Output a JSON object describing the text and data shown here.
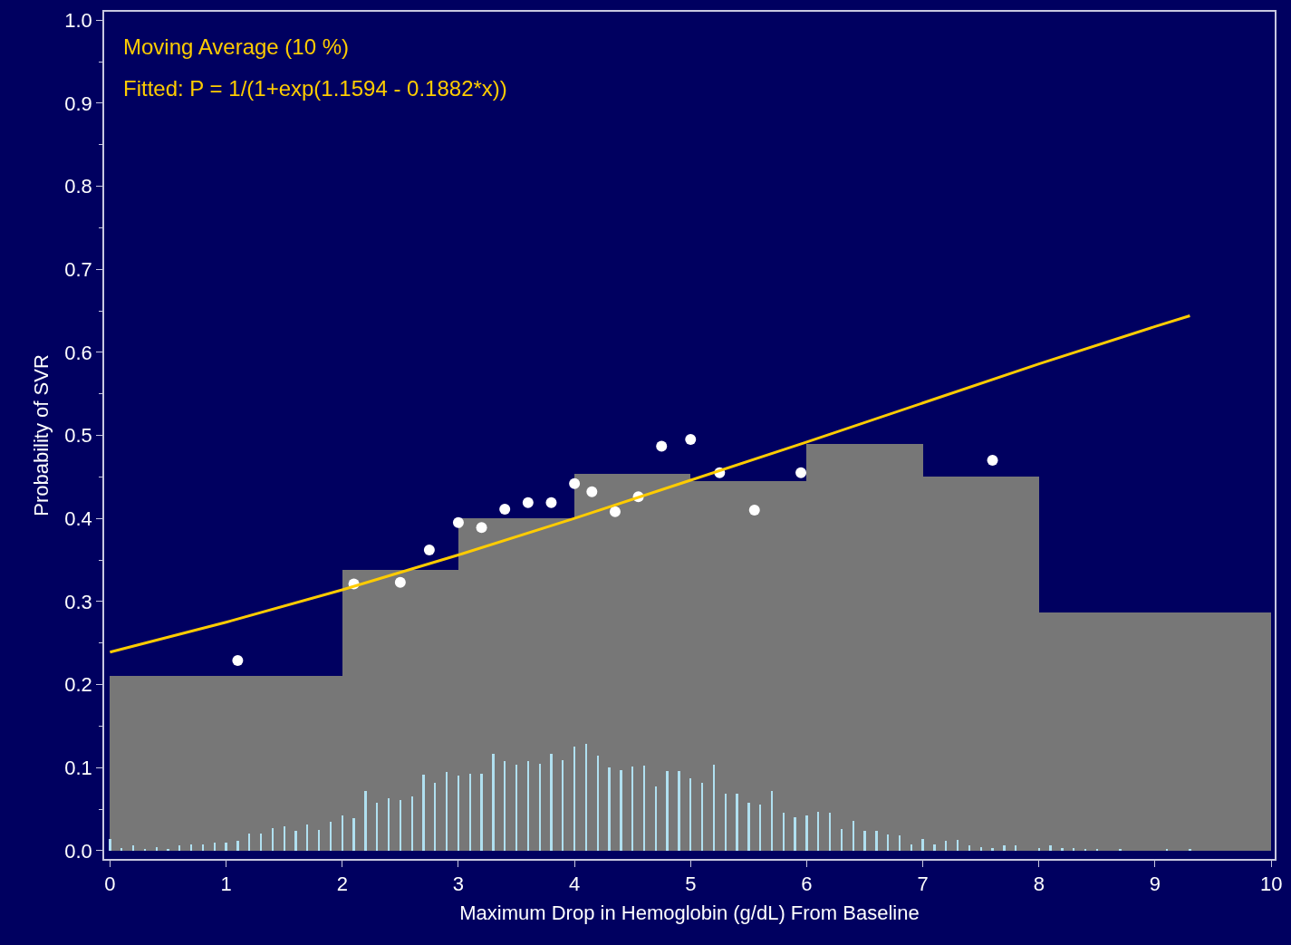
{
  "chart_data": {
    "type": "histogram",
    "xlabel": "Maximum Drop in Hemoglobin (g/dL) From Baseline",
    "ylabel": "Probability of SVR",
    "bins": [
      0,
      2,
      3,
      4,
      5,
      6,
      7,
      8,
      10
    ],
    "values": [
      0.21,
      0.338,
      0.4,
      0.454,
      0.445,
      0.49,
      0.45,
      0.287
    ],
    "color": "#777777",
    "series": [
      {
        "type": "bar",
        "color": "#b0e0f0",
        "x": [
          0,
          0.1,
          0.2,
          0.3,
          0.4,
          0.5,
          0.6,
          0.7,
          0.8,
          0.9,
          1.0,
          1.1,
          1.2,
          1.3,
          1.4,
          1.5,
          1.6,
          1.7,
          1.8,
          1.9,
          2.0,
          2.1,
          2.2,
          2.3,
          2.4,
          2.5,
          2.6,
          2.7,
          2.8,
          2.9,
          3.0,
          3.1,
          3.2,
          3.3,
          3.4,
          3.5,
          3.6,
          3.7,
          3.8,
          3.9,
          4.0,
          4.1,
          4.2,
          4.3,
          4.4,
          4.5,
          4.6,
          4.7,
          4.8,
          4.9,
          5.0,
          5.1,
          5.2,
          5.3,
          5.4,
          5.5,
          5.6,
          5.7,
          5.8,
          5.9,
          6.0,
          6.1,
          6.2,
          6.3,
          6.4,
          6.5,
          6.6,
          6.7,
          6.8,
          6.9,
          7.0,
          7.1,
          7.2,
          7.3,
          7.4,
          7.5,
          7.6,
          7.7,
          7.8,
          8.0,
          8.1,
          8.2,
          8.3,
          8.4,
          8.5,
          8.7,
          9.1,
          9.3
        ],
        "values": [
          0.014,
          0.003,
          0.006,
          0.002,
          0.004,
          0.002,
          0.006,
          0.007,
          0.007,
          0.01,
          0.01,
          0.012,
          0.021,
          0.021,
          0.027,
          0.029,
          0.024,
          0.031,
          0.025,
          0.035,
          0.042,
          0.039,
          0.072,
          0.058,
          0.063,
          0.061,
          0.065,
          0.092,
          0.082,
          0.095,
          0.09,
          0.093,
          0.093,
          0.117,
          0.108,
          0.104,
          0.108,
          0.105,
          0.117,
          0.109,
          0.125,
          0.129,
          0.114,
          0.1,
          0.097,
          0.101,
          0.102,
          0.077,
          0.096,
          0.096,
          0.087,
          0.082,
          0.104,
          0.069,
          0.069,
          0.058,
          0.056,
          0.072,
          0.046,
          0.04,
          0.042,
          0.047,
          0.046,
          0.026,
          0.036,
          0.024,
          0.024,
          0.019,
          0.018,
          0.007,
          0.014,
          0.008,
          0.012,
          0.013,
          0.006,
          0.004,
          0.003,
          0.006,
          0.006,
          0.003,
          0.006,
          0.003,
          0.003,
          0.002,
          0.002,
          0.002,
          0.002,
          0.002
        ]
      },
      {
        "type": "scatter",
        "color": "#ffffff",
        "marker": "circle",
        "x": [
          1.1,
          2.1,
          2.5,
          2.75,
          3.0,
          3.2,
          3.4,
          3.6,
          3.8,
          4.0,
          4.15,
          4.35,
          4.55,
          4.75,
          5.0,
          5.25,
          5.55,
          5.95,
          7.6
        ],
        "values": [
          0.229,
          0.321,
          0.323,
          0.362,
          0.395,
          0.389,
          0.411,
          0.419,
          0.419,
          0.442,
          0.432,
          0.408,
          0.426,
          0.487,
          0.495,
          0.455,
          0.41,
          0.455,
          0.47
        ]
      },
      {
        "type": "line",
        "color": "#ffcc00",
        "line_style": "solid",
        "x": [
          0,
          1,
          2,
          3,
          4,
          5,
          6,
          7,
          8,
          9,
          9.3
        ],
        "values": [
          0.239,
          0.275,
          0.314,
          0.356,
          0.4,
          0.446,
          0.492,
          0.539,
          0.586,
          0.631,
          0.644
        ]
      }
    ],
    "annotations": [
      "Moving Average (10 %)",
      "Fitted: P = 1/(1+exp(1.1594 - 0.1882*x))"
    ],
    "xlim": [
      -0.05,
      10.03
    ],
    "xticks": [
      0,
      1,
      2,
      3,
      4,
      5,
      6,
      7,
      8,
      9,
      10
    ],
    "ylim": [
      -0.01,
      1.01
    ],
    "yticks": [
      {
        "value": 0,
        "label": "0.0"
      },
      {
        "value": 0.1,
        "label": "0.1"
      },
      {
        "value": 0.2,
        "label": "0.2"
      },
      {
        "value": 0.3,
        "label": "0.3"
      },
      {
        "value": 0.4,
        "label": "0.4"
      },
      {
        "value": 0.5,
        "label": "0.5"
      },
      {
        "value": 0.6,
        "label": "0.6"
      },
      {
        "value": 0.7,
        "label": "0.7"
      },
      {
        "value": 0.8,
        "label": "0.8"
      },
      {
        "value": 0.9,
        "label": "0.9"
      },
      {
        "value": 1.0,
        "label": "1.0"
      }
    ],
    "grid": false
  }
}
